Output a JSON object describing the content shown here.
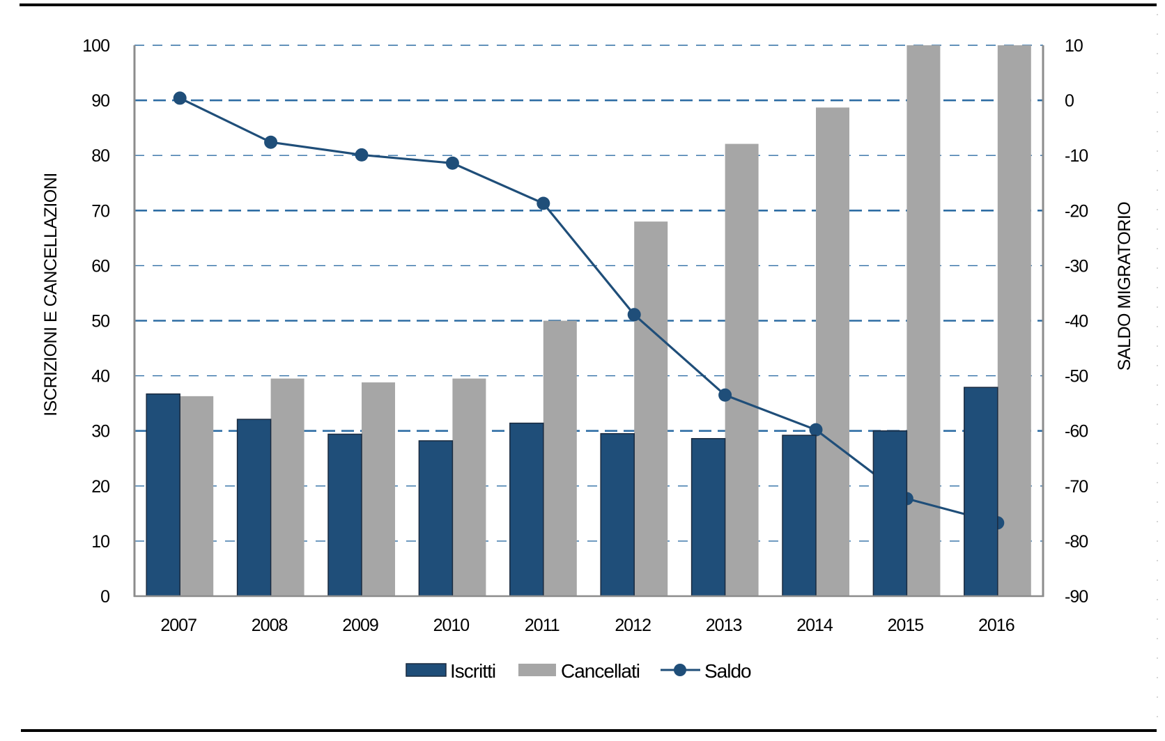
{
  "colors": {
    "iscritti": "#1f4e79",
    "iscritti_border": "#1a2a3f",
    "cancellati": "#a6a6a6",
    "saldo": "#1f4e79",
    "grid": "#2e6da4",
    "axis": "#8c8c8c",
    "frame": "#000000"
  },
  "chart_data": {
    "type": "bar",
    "title": "",
    "xlabel": "",
    "ylabel": "ISCRIZIONI E CANCELLAZIONI",
    "y2label": "SALDO MIGRATORIO",
    "categories": [
      "2007",
      "2008",
      "2009",
      "2010",
      "2011",
      "2012",
      "2013",
      "2014",
      "2015",
      "2016"
    ],
    "ylim": [
      0,
      100
    ],
    "y2lim": [
      -90,
      10
    ],
    "yticks": [
      "0",
      "10",
      "20",
      "30",
      "40",
      "50",
      "60",
      "70",
      "80",
      "90",
      "100"
    ],
    "y2ticks": [
      "-90",
      "-80",
      "-70",
      "-60",
      "-50",
      "-40",
      "-30",
      "-20",
      "-10",
      "0",
      "10"
    ],
    "grid": true,
    "legend_position": "bottom",
    "series": [
      {
        "name": "Iscritti",
        "type": "bar",
        "axis": "left",
        "values": [
          36.7,
          32.1,
          29.4,
          28.2,
          31.4,
          29.5,
          28.6,
          29.2,
          30.0,
          37.9
        ]
      },
      {
        "name": "Cancellati",
        "type": "bar",
        "axis": "left",
        "values": [
          36.3,
          39.5,
          38.8,
          39.5,
          50.0,
          68.0,
          82.1,
          88.7,
          100,
          100
        ]
      },
      {
        "name": "Saldo",
        "type": "line",
        "axis": "right",
        "values": [
          0.4,
          -7.6,
          -9.9,
          -11.4,
          -18.7,
          -38.9,
          -53.5,
          -59.8,
          -72.3,
          -76.7
        ]
      }
    ]
  }
}
